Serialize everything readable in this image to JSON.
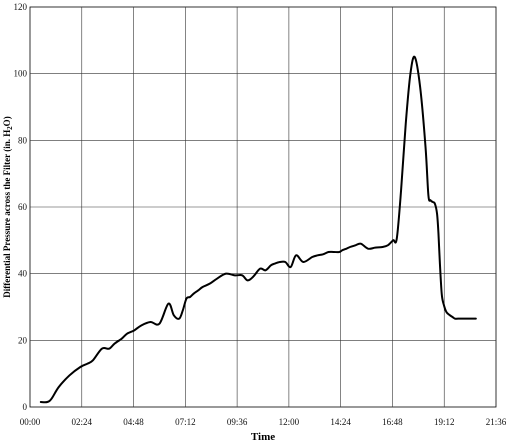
{
  "chart_data": {
    "type": "line",
    "title": "",
    "xlabel": "Time",
    "ylabel_main": "Differential Pressure across the Filter (in. H",
    "ylabel_sub": "2",
    "ylabel_end": "O)",
    "x_ticks": [
      "00:00",
      "02:24",
      "04:48",
      "07:12",
      "09:36",
      "12:00",
      "14:24",
      "16:48",
      "19:12",
      "21:36"
    ],
    "x_tick_minutes": [
      0,
      144,
      288,
      432,
      576,
      720,
      864,
      1008,
      1152,
      1296
    ],
    "xlim_minutes": [
      0,
      1296
    ],
    "y_ticks": [
      "0",
      "20",
      "40",
      "60",
      "80",
      "100",
      "120"
    ],
    "y_tick_values": [
      0,
      20,
      40,
      60,
      80,
      100,
      120
    ],
    "ylim": [
      0,
      120
    ],
    "grid": true,
    "line_color": "#000000",
    "series": [
      {
        "time_minutes": [
          30,
          48,
          60,
          80,
          110,
          140,
          160,
          175,
          200,
          220,
          235,
          255,
          270,
          290,
          310,
          335,
          360,
          385,
          400,
          415,
          425,
          435,
          445,
          455,
          468,
          480,
          500,
          520,
          545,
          570,
          590,
          605,
          620,
          640,
          655,
          670,
          680,
          695,
          710,
          725,
          740,
          760,
          785,
          800,
          815,
          830,
          845,
          860,
          868,
          875,
          880,
          890,
          905,
          920,
          940,
          960,
          980,
          995,
          1010,
          1020,
          1032,
          1045,
          1058,
          1070,
          1085,
          1100,
          1108,
          1114,
          1120,
          1126,
          1132,
          1136,
          1140,
          1145,
          1150,
          1158,
          1168,
          1175,
          1182,
          1190,
          1198,
          1210,
          1225,
          1240
        ],
        "values": [
          1.5,
          1.5,
          2.5,
          6,
          9.5,
          12,
          13,
          14,
          17.5,
          17.5,
          19,
          20.5,
          22,
          23,
          24.5,
          25.5,
          25,
          31,
          27.5,
          26.5,
          29,
          32.5,
          33,
          34,
          35,
          36,
          37,
          38.5,
          40,
          39.5,
          39.5,
          38,
          39,
          41.5,
          41,
          42.5,
          43,
          43.5,
          43.5,
          42,
          45.5,
          43.5,
          45,
          45.5,
          45.8,
          46.5,
          46.5,
          46.5,
          47,
          47.3,
          47.5,
          48,
          48.5,
          49,
          47.5,
          47.8,
          48,
          48.5,
          50,
          50.5,
          65,
          85,
          100,
          105,
          96,
          78,
          63.5,
          62,
          61.5,
          61,
          58,
          52,
          43,
          34,
          31,
          28.5,
          27.5,
          27,
          26.5,
          26.5,
          26.5,
          26.5,
          26.5,
          26.5
        ]
      }
    ]
  }
}
